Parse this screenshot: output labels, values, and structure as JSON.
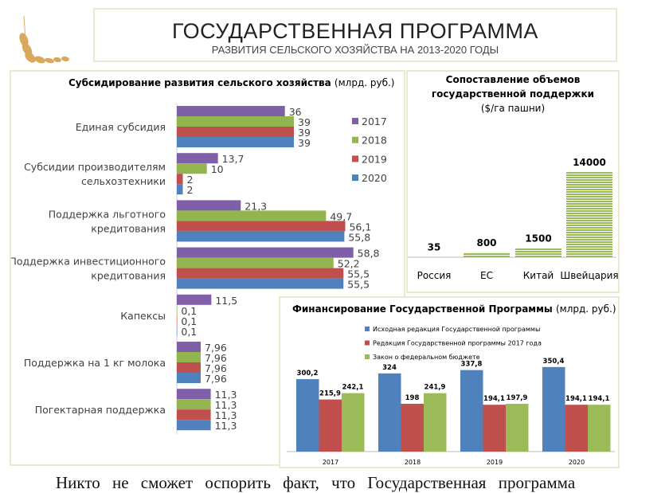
{
  "header": {
    "title": "ГОСУДАРСТВЕННАЯ ПРОГРАММА",
    "subtitle": "РАЗВИТИЯ СЕЛЬСКОГО ХОЗЯЙСТВА НА 2013-2020 ГОДЫ"
  },
  "logo_icon": "wheat-icon",
  "bottom_text": "Никто не сможет оспорить факт, что Государственная программа",
  "chart_data": [
    {
      "type": "bar",
      "orientation": "horizontal",
      "title": "Субсидирование развития сельского хозяйства",
      "title_unit": "(млрд. руб.)",
      "categories": [
        "Единая субсидия",
        "Субсидии производителям сельхозтехники",
        "Поддержка льготного кредитования",
        "Поддержка инвестиционного кредитования",
        "Капексы",
        "Поддержка на 1 кг молока",
        "Погектарная поддержка"
      ],
      "category_lines": [
        [
          "Единая субсидия"
        ],
        [
          "Субсидии производителям",
          "сельхозтехники"
        ],
        [
          "Поддержка льготного",
          "кредитования"
        ],
        [
          "Поддержка инвестиционного",
          "кредитования"
        ],
        [
          "Капексы"
        ],
        [
          "Поддержка на 1 кг молока"
        ],
        [
          "Погектарная поддержка"
        ]
      ],
      "series": [
        {
          "name": "2017",
          "color": "#7f5fa8",
          "values": [
            36,
            13.7,
            21.3,
            58.8,
            11.5,
            7.96,
            11.3
          ],
          "labels": [
            "36",
            "13,7",
            "21,3",
            "58,8",
            "11,5",
            "7,96",
            "11,3"
          ]
        },
        {
          "name": "2018",
          "color": "#92b550",
          "values": [
            39,
            10,
            49.7,
            52.2,
            0.1,
            7.96,
            11.3
          ],
          "labels": [
            "39",
            "10",
            "49,7",
            "52,2",
            "0,1",
            "7,96",
            "11,3"
          ]
        },
        {
          "name": "2019",
          "color": "#c0504d",
          "values": [
            39,
            2,
            56.1,
            55.5,
            0.1,
            7.96,
            11.3
          ],
          "labels": [
            "39",
            "2",
            "56,1",
            "55,5",
            "0,1",
            "7,96",
            "11,3"
          ]
        },
        {
          "name": "2020",
          "color": "#4f81bd",
          "values": [
            39,
            2,
            55.8,
            55.5,
            0.1,
            7.96,
            11.3
          ],
          "labels": [
            "39",
            "2",
            "55,8",
            "55,5",
            "0,1",
            "7,96",
            "11,3"
          ]
        }
      ],
      "legend": "right"
    },
    {
      "type": "bar",
      "title_lines": [
        "Сопоставление объемов",
        "государственной поддержки",
        "($/га пашни)"
      ],
      "categories": [
        "Россия",
        "ЕС",
        "Китай",
        "Швейцария"
      ],
      "values": [
        35,
        800,
        1500,
        14000
      ],
      "labels": [
        "35",
        "800",
        "1500",
        "14000"
      ],
      "color": "#9bbb59"
    },
    {
      "type": "bar",
      "title": "Финансирование Государственной Программы",
      "title_unit": "(млрд. руб.)",
      "categories": [
        "2017",
        "2018",
        "2019",
        "2020"
      ],
      "series": [
        {
          "name": "Исходная редакция Государственной программы",
          "color": "#4f81bd",
          "values": [
            300.2,
            324,
            337.8,
            350.4
          ],
          "labels": [
            "300,2",
            "324",
            "337,8",
            "350,4"
          ]
        },
        {
          "name": "Редакция Государственной программы 2017 года",
          "color": "#c0504d",
          "values": [
            215.9,
            198,
            194.1,
            194.1
          ],
          "labels": [
            "215,9",
            "198",
            "194,1",
            "194,1"
          ]
        },
        {
          "name": "Закон о федеральном бюджете",
          "color": "#9bbb59",
          "values": [
            242.1,
            241.9,
            197.9,
            194.1
          ],
          "labels": [
            "242,1",
            "241,9",
            "197,9",
            "194,1"
          ]
        }
      ],
      "legend": "top"
    }
  ]
}
